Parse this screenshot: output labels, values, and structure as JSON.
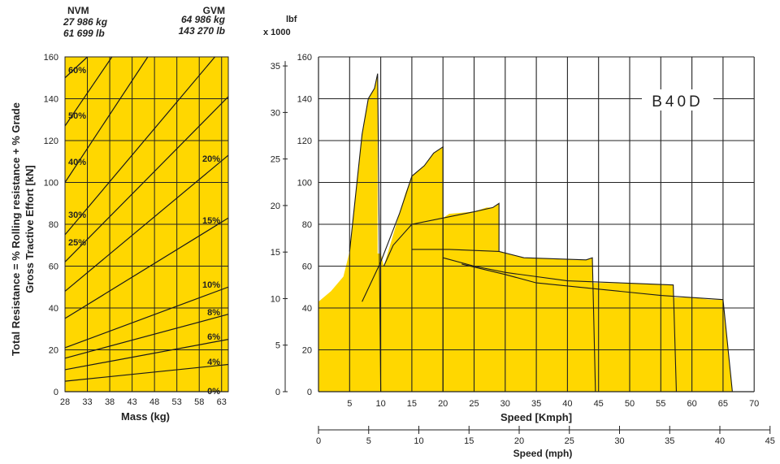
{
  "colors": {
    "fill": "#FFD700",
    "grid": "#222222",
    "line": "#1a1a1a",
    "text": "#222222"
  },
  "header": {
    "nvm_label": "NVM",
    "nvm_kg": "27 986 kg",
    "nvm_lb": "61 699 lb",
    "gvm_label": "GVM",
    "gvm_kg": "64 986 kg",
    "gvm_lb": "143 270 lb",
    "lbf_label": "lbf",
    "lbf_scale": "x 1000"
  },
  "chart_data": [
    {
      "type": "line",
      "name": "rimpull-grade-chart",
      "ylabel_line1": "Total Resistance = % Rolling resistance + % Grade",
      "ylabel_line2": "Gross Tractive Effort [kN]",
      "xlabel": "Mass (kg)",
      "x_ticks": [
        28,
        33,
        38,
        43,
        48,
        53,
        58,
        63
      ],
      "y_ticks": [
        0,
        20,
        40,
        60,
        80,
        100,
        120,
        140,
        160
      ],
      "xlim": [
        28,
        64.5
      ],
      "ylim": [
        0,
        160
      ],
      "grid": true,
      "series": [
        {
          "name": "0%",
          "points": [
            [
              28,
              0
            ],
            [
              64.5,
              0
            ]
          ]
        },
        {
          "name": "4%",
          "points": [
            [
              28,
              5
            ],
            [
              64.5,
              13
            ]
          ]
        },
        {
          "name": "6%",
          "points": [
            [
              28,
              10.5
            ],
            [
              64.5,
              25
            ]
          ]
        },
        {
          "name": "8%",
          "points": [
            [
              28,
              16
            ],
            [
              64.5,
              37
            ]
          ]
        },
        {
          "name": "10%",
          "points": [
            [
              28,
              21
            ],
            [
              64.5,
              50
            ]
          ]
        },
        {
          "name": "15%",
          "points": [
            [
              28,
              35
            ],
            [
              64.5,
              83
            ]
          ]
        },
        {
          "name": "20%",
          "points": [
            [
              28,
              48
            ],
            [
              64.5,
              113
            ]
          ]
        },
        {
          "name": "25%",
          "points": [
            [
              28,
              62
            ],
            [
              64.5,
              141
            ]
          ]
        },
        {
          "name": "30%",
          "points": [
            [
              28,
              75
            ],
            [
              61.5,
              160
            ]
          ]
        },
        {
          "name": "40%",
          "points": [
            [
              28,
              100
            ],
            [
              46.5,
              160
            ]
          ]
        },
        {
          "name": "50%",
          "points": [
            [
              28,
              127
            ],
            [
              38.5,
              160
            ]
          ]
        },
        {
          "name": "60%",
          "points": [
            [
              28,
              150
            ],
            [
              33,
              160
            ]
          ]
        }
      ],
      "line_labels": [
        "60%",
        "50%",
        "40%",
        "30%",
        "25%",
        "20%",
        "15%",
        "10%",
        "8%",
        "6%",
        "4%",
        "0%"
      ]
    },
    {
      "type": "area",
      "name": "tractive-effort-chart",
      "title": "B40D",
      "xlabel": "Speed [Kmph]",
      "xlabel2": "Speed (mph)",
      "x_ticks": [
        5,
        10,
        15,
        20,
        25,
        30,
        35,
        40,
        45,
        50,
        55,
        60,
        65,
        70
      ],
      "x2_ticks": [
        0,
        5,
        10,
        15,
        20,
        25,
        30,
        35,
        40,
        45
      ],
      "y_kn_ticks": [
        0,
        20,
        40,
        60,
        80,
        100,
        120,
        140,
        160
      ],
      "y_lbf_ticks": [
        0,
        5,
        10,
        15,
        20,
        25,
        30,
        35
      ],
      "xlim": [
        0,
        70
      ],
      "ylim": [
        0,
        160
      ],
      "grid": true,
      "envelope": [
        [
          0,
          43
        ],
        [
          2,
          48
        ],
        [
          4,
          55
        ],
        [
          5,
          67
        ],
        [
          6,
          95
        ],
        [
          7,
          123
        ],
        [
          8,
          140
        ],
        [
          9,
          145
        ],
        [
          9.5,
          152
        ],
        [
          9.5,
          66
        ],
        [
          10,
          66
        ],
        [
          10.5,
          60
        ],
        [
          12,
          75
        ],
        [
          14,
          95
        ],
        [
          15,
          103
        ],
        [
          17,
          108
        ],
        [
          18.5,
          114
        ],
        [
          20,
          117
        ],
        [
          20,
          83
        ],
        [
          21,
          85
        ],
        [
          25,
          86
        ],
        [
          27,
          88
        ],
        [
          28,
          88
        ],
        [
          29,
          90
        ],
        [
          29,
          67
        ],
        [
          33,
          64
        ],
        [
          41,
          63
        ],
        [
          43,
          63
        ],
        [
          44,
          64
        ],
        [
          44,
          52
        ],
        [
          46,
          52
        ],
        [
          57,
          51
        ],
        [
          57,
          45
        ],
        [
          60,
          45
        ],
        [
          63,
          44
        ],
        [
          65,
          44
        ],
        [
          66.5,
          0
        ],
        [
          0,
          0
        ]
      ],
      "gear_lines": [
        {
          "name": "gear-1",
          "points": [
            [
              5,
              67
            ],
            [
              6,
              95
            ],
            [
              7,
              123
            ],
            [
              8,
              140
            ],
            [
              9,
              145
            ],
            [
              9.5,
              152
            ],
            [
              10,
              0
            ]
          ]
        },
        {
          "name": "gear-2",
          "points": [
            [
              7,
              43
            ],
            [
              10,
              62
            ],
            [
              13,
              85
            ],
            [
              15,
              103
            ],
            [
              17,
              108
            ],
            [
              18.5,
              114
            ],
            [
              20,
              117
            ],
            [
              20,
              0
            ]
          ]
        },
        {
          "name": "gear-3",
          "points": [
            [
              10.5,
              60
            ],
            [
              12,
              70
            ],
            [
              15,
              80
            ],
            [
              20,
              83
            ],
            [
              25,
              86
            ],
            [
              28,
              88
            ],
            [
              29,
              90
            ],
            [
              29,
              67
            ]
          ]
        },
        {
          "name": "gear-4",
          "points": [
            [
              15,
              68
            ],
            [
              21,
              68
            ],
            [
              29,
              67
            ],
            [
              33,
              64
            ],
            [
              43,
              63
            ],
            [
              44,
              64
            ],
            [
              44.5,
              0
            ]
          ]
        },
        {
          "name": "gear-5",
          "points": [
            [
              20,
              64
            ],
            [
              25,
              60
            ],
            [
              30,
              57
            ],
            [
              40,
              53
            ],
            [
              57,
              51
            ],
            [
              57.5,
              0
            ]
          ]
        },
        {
          "name": "gear-6",
          "points": [
            [
              23,
              61
            ],
            [
              30,
              56
            ],
            [
              35,
              52
            ],
            [
              45,
              49
            ],
            [
              55,
              46
            ],
            [
              65,
              44
            ],
            [
              66.5,
              0
            ]
          ]
        }
      ]
    }
  ]
}
